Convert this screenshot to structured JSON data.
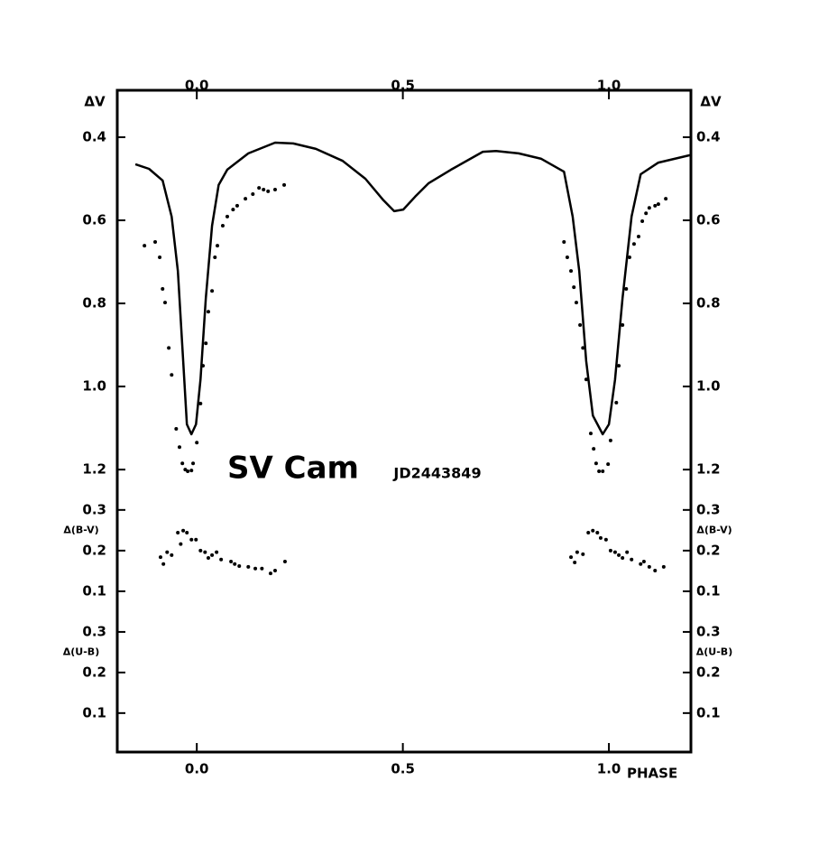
{
  "chart_data": [
    {
      "type": "scatter",
      "ylabel": "ΔV",
      "yinvert": true,
      "annotations": [
        "SV Cam",
        "JD2443849"
      ],
      "xlim": [
        -0.193,
        1.199
      ],
      "xticks": [
        {
          "value": 0,
          "label": "0.0"
        },
        0.5,
        {
          "value": 1,
          "label": "1.0"
        }
      ],
      "ylim": [
        0.287,
        1.254
      ],
      "yticks": [
        0.4,
        0.6,
        0.8,
        {
          "value": 1,
          "label": "1.0"
        },
        1.2
      ],
      "series": [
        {
          "style": "line",
          "color": "#000000",
          "x": [
            -0.149,
            -0.116,
            -0.083,
            -0.061,
            -0.046,
            -0.033,
            -0.024,
            -0.013,
            -0.002,
            0.009,
            0.022,
            0.037,
            0.053,
            0.074,
            0.125,
            0.19,
            0.234,
            0.289,
            0.354,
            0.409,
            0.453,
            0.479,
            0.501,
            0.53,
            0.562,
            0.617,
            0.694,
            0.726,
            0.781,
            0.836,
            0.891,
            0.912,
            0.928,
            0.945,
            0.961,
            0.985,
            1.0,
            1.015,
            1.033,
            1.055,
            1.077,
            1.12,
            1.197
          ],
          "values": [
            0.465,
            0.476,
            0.504,
            0.591,
            0.722,
            0.939,
            1.091,
            1.115,
            1.091,
            0.983,
            0.787,
            0.613,
            0.515,
            0.478,
            0.439,
            0.413,
            0.415,
            0.428,
            0.457,
            0.5,
            0.552,
            0.578,
            0.574,
            0.543,
            0.511,
            0.478,
            0.435,
            0.433,
            0.439,
            0.452,
            0.483,
            0.591,
            0.722,
            0.939,
            1.07,
            1.115,
            1.091,
            0.983,
            0.787,
            0.591,
            0.489,
            0.461,
            0.443
          ]
        },
        {
          "style": "points",
          "color": "#000000",
          "x": [
            -0.127,
            -0.101,
            -0.09,
            -0.083,
            -0.077,
            -0.068,
            -0.061,
            -0.05,
            -0.042,
            -0.035,
            -0.028,
            -0.022,
            -0.013,
            -0.009,
            0.0,
            0.009,
            0.015,
            0.022,
            0.028,
            0.037,
            0.044,
            0.05,
            0.063,
            0.074,
            0.088,
            0.098,
            0.118,
            0.136,
            0.151,
            0.162,
            0.173,
            0.19,
            0.212,
            0.891,
            0.899,
            0.908,
            0.915,
            0.921,
            0.93,
            0.937,
            0.945,
            0.956,
            0.963,
            0.969,
            0.976,
            0.985,
            0.998,
            1.004,
            1.018,
            1.024,
            1.033,
            1.042,
            1.05,
            1.061,
            1.072,
            1.081,
            1.09,
            1.098,
            1.112,
            1.12,
            1.138
          ],
          "values": [
            0.661,
            0.652,
            0.689,
            0.765,
            0.798,
            0.907,
            0.972,
            1.102,
            1.146,
            1.185,
            1.2,
            1.204,
            1.202,
            1.185,
            1.135,
            1.041,
            0.95,
            0.896,
            0.82,
            0.77,
            0.689,
            0.661,
            0.613,
            0.591,
            0.574,
            0.565,
            0.548,
            0.537,
            0.522,
            0.526,
            0.53,
            0.526,
            0.515,
            0.652,
            0.689,
            0.722,
            0.761,
            0.798,
            0.852,
            0.907,
            0.983,
            1.113,
            1.15,
            1.185,
            1.204,
            1.204,
            1.187,
            1.13,
            1.039,
            0.95,
            0.852,
            0.765,
            0.689,
            0.657,
            0.639,
            0.602,
            0.583,
            0.57,
            0.565,
            0.561,
            0.548
          ]
        }
      ]
    },
    {
      "type": "scatter",
      "ylabel": "Δ(B-V)",
      "yinvert": false,
      "xlim": [
        -0.193,
        1.199
      ],
      "ylim": [
        0.051,
        0.344
      ],
      "yticks": [
        0.1,
        0.2,
        0.3
      ],
      "series": [
        {
          "style": "points",
          "color": "#000000",
          "x": [
            -0.088,
            -0.081,
            -0.072,
            -0.061,
            -0.046,
            -0.039,
            -0.033,
            -0.024,
            -0.013,
            -0.002,
            0.009,
            0.02,
            0.028,
            0.037,
            0.048,
            0.059,
            0.083,
            0.092,
            0.103,
            0.125,
            0.142,
            0.158,
            0.179,
            0.19,
            0.214,
            0.908,
            0.917,
            0.923,
            0.937,
            0.95,
            0.961,
            0.972,
            0.98,
            0.993,
            1.004,
            1.015,
            1.024,
            1.033,
            1.044,
            1.055,
            1.077,
            1.085,
            1.098,
            1.112,
            1.133
          ],
          "values": [
            0.184,
            0.167,
            0.196,
            0.189,
            0.244,
            0.216,
            0.249,
            0.244,
            0.227,
            0.227,
            0.2,
            0.196,
            0.182,
            0.189,
            0.196,
            0.178,
            0.173,
            0.167,
            0.162,
            0.16,
            0.156,
            0.156,
            0.144,
            0.151,
            0.173,
            0.184,
            0.171,
            0.196,
            0.191,
            0.244,
            0.249,
            0.244,
            0.231,
            0.227,
            0.2,
            0.196,
            0.189,
            0.182,
            0.196,
            0.178,
            0.167,
            0.173,
            0.16,
            0.151,
            0.16
          ]
        }
      ]
    },
    {
      "type": "scatter",
      "ylabel": "Δ(U-B)",
      "yinvert": false,
      "xlabel": "PHASE",
      "xlim": [
        -0.193,
        1.199
      ],
      "xticks": [
        {
          "value": 0,
          "label": "0.0"
        },
        0.5,
        {
          "value": 1,
          "label": "1.0"
        }
      ],
      "ylim": [
        0.004,
        0.351
      ],
      "yticks": [
        0.1,
        0.2,
        0.3
      ],
      "series": []
    }
  ]
}
